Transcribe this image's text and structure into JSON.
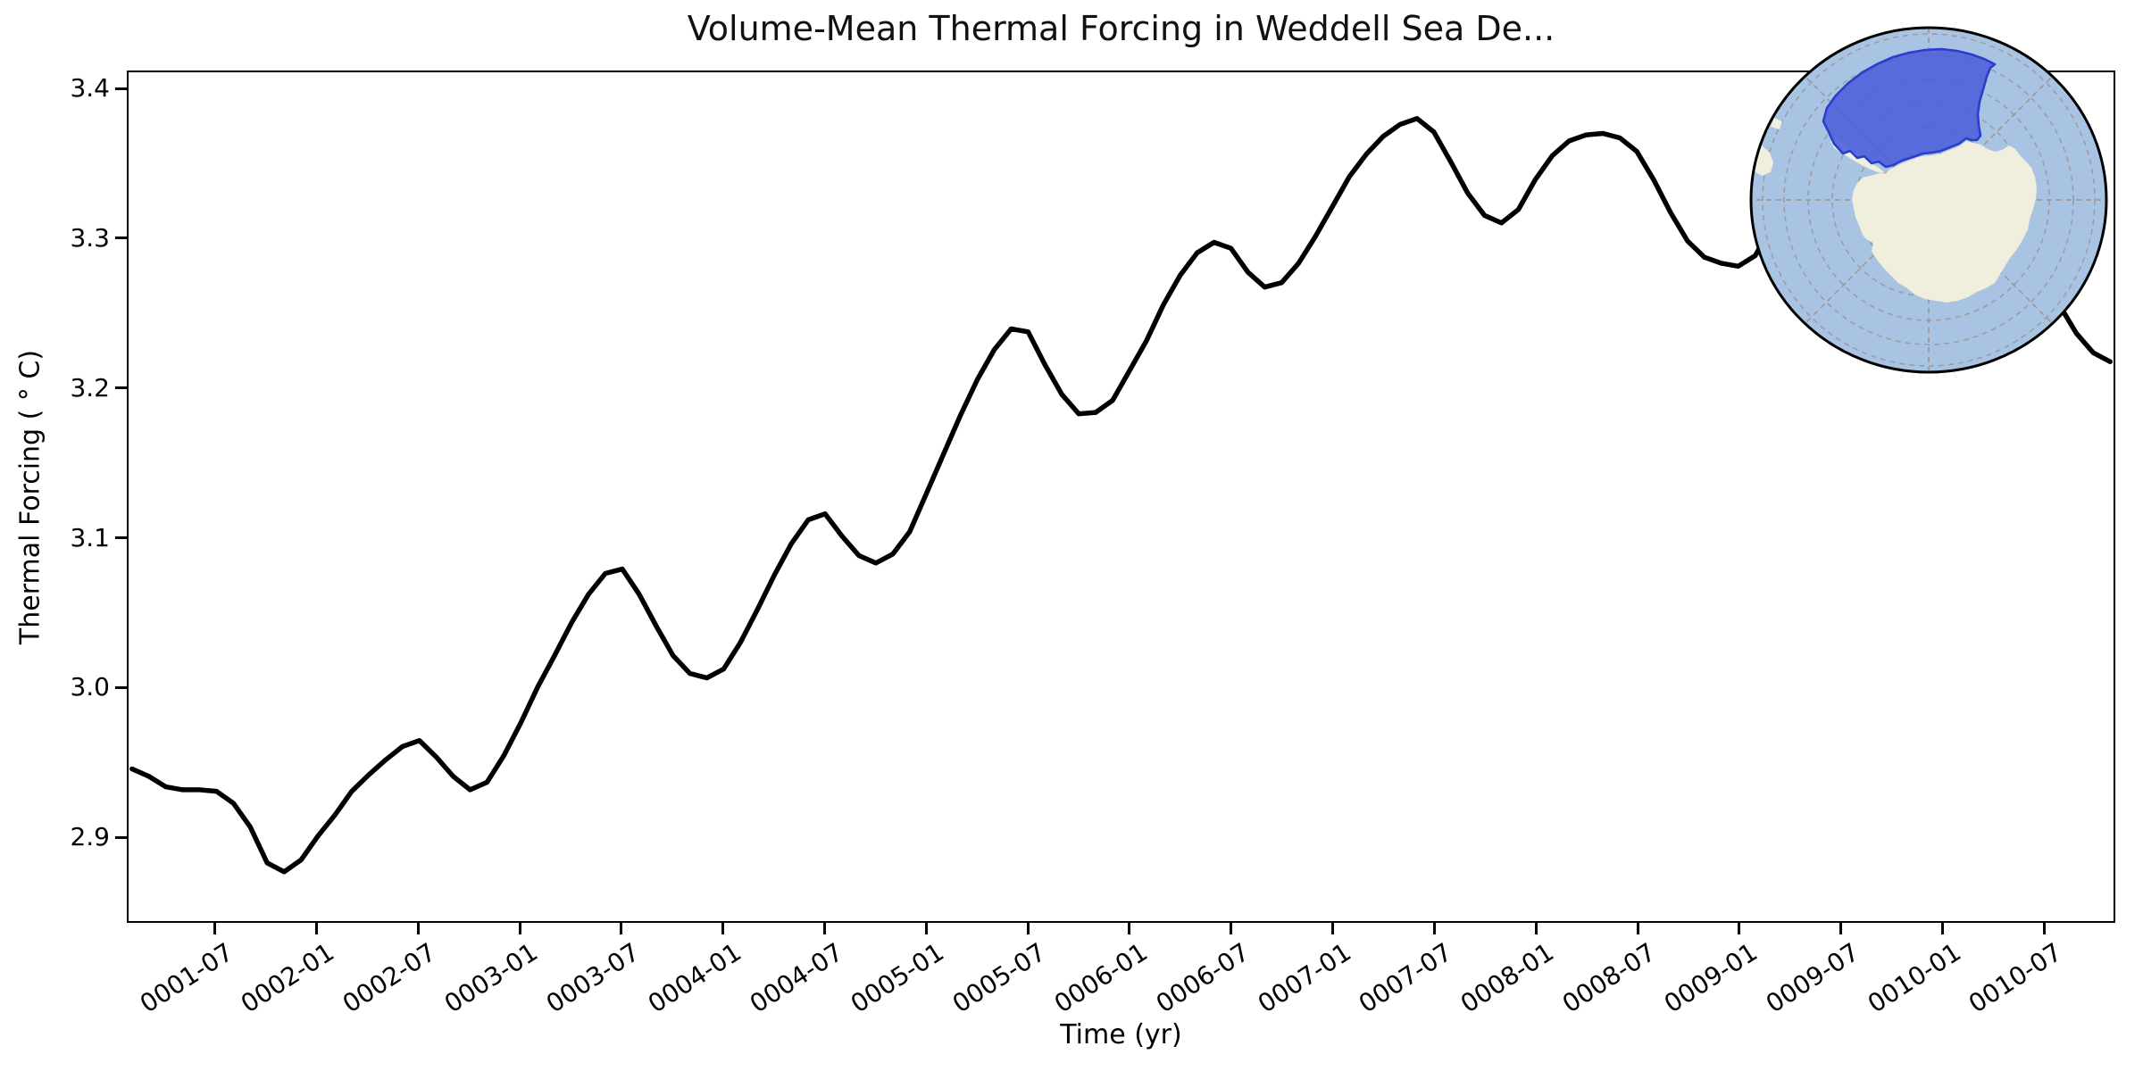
{
  "figure": {
    "title": "Volume-Mean Thermal Forcing in Weddell Sea De...",
    "xlabel": "Time (yr)",
    "ylabel": "Thermal Forcing ( ° C)"
  },
  "map_inset": {
    "description": "south-polar-map-inset",
    "region_name": "weddell-sea-region",
    "ocean_color": "#a9c4e3",
    "land_color": "#f0eedd",
    "region_fill": "#4c5fd8",
    "region_edge": "#2c3ccd",
    "graticule_color": "#999999",
    "border_color": "#000000"
  },
  "chart_data": {
    "type": "line",
    "title": "Volume-Mean Thermal Forcing in Weddell Sea De...",
    "xlabel": "Time (yr)",
    "ylabel": "Thermal Forcing ( ° C)",
    "line_color": "#000000",
    "line_width": 5.5,
    "grid": false,
    "legend": false,
    "ylim": [
      2.843,
      3.412
    ],
    "x_index_lim": [
      -0.2,
      117.2
    ],
    "ytick_values": [
      3.4,
      3.3,
      3.2,
      3.1,
      3.0,
      2.9
    ],
    "ytick_labels": [
      "3.4",
      "3.3",
      "3.2",
      "3.1",
      "3.0",
      "2.9"
    ],
    "xtick_labels": [
      "0001-07",
      "0002-01",
      "0002-07",
      "0003-01",
      "0003-07",
      "0004-01",
      "0004-07",
      "0005-01",
      "0005-07",
      "0006-01",
      "0006-07",
      "0007-01",
      "0007-07",
      "0008-01",
      "0008-07",
      "0009-01",
      "0009-07",
      "0010-01",
      "0010-07"
    ],
    "x": [
      "0001-02",
      "0001-03",
      "0001-04",
      "0001-05",
      "0001-06",
      "0001-07",
      "0001-08",
      "0001-09",
      "0001-10",
      "0001-11",
      "0001-12",
      "0002-01",
      "0002-02",
      "0002-03",
      "0002-04",
      "0002-05",
      "0002-06",
      "0002-07",
      "0002-08",
      "0002-09",
      "0002-10",
      "0002-11",
      "0002-12",
      "0003-01",
      "0003-02",
      "0003-03",
      "0003-04",
      "0003-05",
      "0003-06",
      "0003-07",
      "0003-08",
      "0003-09",
      "0003-10",
      "0003-11",
      "0003-12",
      "0004-01",
      "0004-02",
      "0004-03",
      "0004-04",
      "0004-05",
      "0004-06",
      "0004-07",
      "0004-08",
      "0004-09",
      "0004-10",
      "0004-11",
      "0004-12",
      "0005-01",
      "0005-02",
      "0005-03",
      "0005-04",
      "0005-05",
      "0005-06",
      "0005-07",
      "0005-08",
      "0005-09",
      "0005-10",
      "0005-11",
      "0005-12",
      "0006-01",
      "0006-02",
      "0006-03",
      "0006-04",
      "0006-05",
      "0006-06",
      "0006-07",
      "0006-08",
      "0006-09",
      "0006-10",
      "0006-11",
      "0006-12",
      "0007-01",
      "0007-02",
      "0007-03",
      "0007-04",
      "0007-05",
      "0007-06",
      "0007-07",
      "0007-08",
      "0007-09",
      "0007-10",
      "0007-11",
      "0007-12",
      "0008-01",
      "0008-02",
      "0008-03",
      "0008-04",
      "0008-05",
      "0008-06",
      "0008-07",
      "0008-08",
      "0008-09",
      "0008-10",
      "0008-11",
      "0008-12",
      "0009-01",
      "0009-02",
      "0009-03",
      "0009-04",
      "0009-05",
      "0009-06",
      "0009-07",
      "0009-08",
      "0009-09",
      "0009-10",
      "0009-11",
      "0009-12",
      "0010-01",
      "0010-02",
      "0010-03",
      "0010-04",
      "0010-05",
      "0010-06",
      "0010-07",
      "0010-08",
      "0010-09",
      "0010-10",
      "0010-11"
    ],
    "y": [
      2.945,
      2.94,
      2.933,
      2.931,
      2.931,
      2.93,
      2.922,
      2.906,
      2.882,
      2.876,
      2.884,
      2.9,
      2.914,
      2.93,
      2.941,
      2.951,
      2.96,
      2.964,
      2.953,
      2.94,
      2.931,
      2.936,
      2.954,
      2.976,
      3.0,
      3.021,
      3.043,
      3.062,
      3.076,
      3.079,
      3.062,
      3.041,
      3.021,
      3.009,
      3.006,
      3.012,
      3.03,
      3.052,
      3.075,
      3.096,
      3.112,
      3.116,
      3.101,
      3.088,
      3.083,
      3.089,
      3.104,
      3.13,
      3.156,
      3.182,
      3.206,
      3.226,
      3.24,
      3.238,
      3.216,
      3.196,
      3.183,
      3.184,
      3.192,
      3.212,
      3.232,
      3.256,
      3.276,
      3.291,
      3.298,
      3.294,
      3.278,
      3.268,
      3.271,
      3.284,
      3.302,
      3.322,
      3.342,
      3.357,
      3.369,
      3.377,
      3.381,
      3.372,
      3.352,
      3.331,
      3.316,
      3.311,
      3.32,
      3.34,
      3.356,
      3.366,
      3.37,
      3.371,
      3.368,
      3.359,
      3.34,
      3.318,
      3.299,
      3.288,
      3.284,
      3.282,
      3.289,
      3.309,
      3.334,
      3.359,
      3.38,
      3.394,
      3.398,
      3.39,
      3.372,
      3.35,
      3.33,
      3.312,
      3.3,
      3.294,
      3.291,
      3.29,
      3.286,
      3.272,
      3.256,
      3.237,
      3.224,
      3.218
    ]
  }
}
